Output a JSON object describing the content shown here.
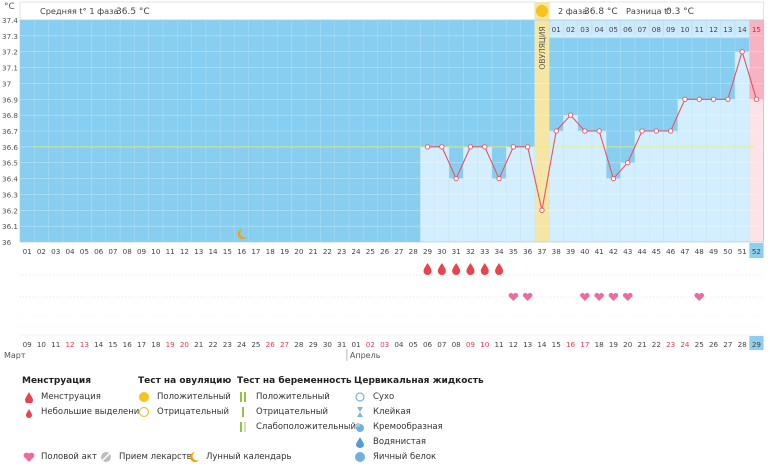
{
  "header": {
    "phase1_label": "Средняя t° 1 фаза",
    "phase1_value": "36.5 °C",
    "phase2_label": "2 фаза",
    "phase2_value": "36.8 °C",
    "diff_label": "Разница t°",
    "diff_value": "0.3 °C",
    "ovulation_label": "ОВУЛЯЦИЯ",
    "unit": "°C"
  },
  "chart_data": {
    "type": "line",
    "ylim": [
      36,
      37.4
    ],
    "y_ticks": [
      "37.4",
      "37.3",
      "37.2",
      "37.1",
      "37",
      "36.9",
      "36.8",
      "36.7",
      "36.6",
      "36.5",
      "36.4",
      "36.3",
      "36.2",
      "36.1",
      "36"
    ],
    "cycle_days": [
      "01",
      "02",
      "03",
      "04",
      "05",
      "06",
      "07",
      "08",
      "09",
      "10",
      "11",
      "12",
      "13",
      "14",
      "15",
      "16",
      "17",
      "18",
      "19",
      "20",
      "21",
      "22",
      "23",
      "24",
      "25",
      "26",
      "27",
      "28",
      "29",
      "30",
      "31",
      "32",
      "33",
      "34",
      "35",
      "36",
      "37",
      "38",
      "39",
      "40",
      "41",
      "42",
      "43",
      "44",
      "45",
      "46",
      "47",
      "48",
      "49",
      "50",
      "51",
      "52"
    ],
    "phase2_days": [
      "01",
      "02",
      "03",
      "04",
      "05",
      "06",
      "07",
      "08",
      "09",
      "10",
      "11",
      "12",
      "13",
      "14",
      "15"
    ],
    "dates": [
      "09",
      "10",
      "11",
      "12",
      "13",
      "14",
      "15",
      "16",
      "17",
      "18",
      "19",
      "20",
      "21",
      "22",
      "23",
      "24",
      "25",
      "26",
      "27",
      "28",
      "29",
      "30",
      "31",
      "01",
      "02",
      "03",
      "04",
      "05",
      "06",
      "07",
      "08",
      "09",
      "10",
      "11",
      "12",
      "13",
      "14",
      "15",
      "16",
      "17",
      "18",
      "19",
      "20",
      "21",
      "22",
      "23",
      "24",
      "25",
      "26",
      "27",
      "28",
      "29"
    ],
    "red_dates": [
      3,
      4,
      10,
      11,
      17,
      18,
      24,
      25,
      31,
      32,
      38,
      39,
      45,
      46
    ],
    "months": [
      "Март",
      "Апрель"
    ],
    "temperature_days": [
      29,
      30,
      31,
      32,
      33,
      34,
      35,
      36,
      37,
      38,
      39,
      40,
      41,
      42,
      43,
      44,
      45,
      46,
      47,
      48,
      49,
      50,
      51,
      52
    ],
    "temperatures": [
      36.6,
      36.6,
      36.4,
      36.6,
      36.6,
      36.4,
      36.6,
      36.6,
      36.2,
      36.7,
      36.8,
      36.7,
      36.7,
      36.4,
      36.5,
      36.7,
      36.7,
      36.7,
      36.9,
      36.9,
      36.9,
      36.9,
      37.2,
      36.9
    ],
    "ovulation_day": 37,
    "current_day": 52,
    "coverline": 36.6,
    "menstruation_days": [
      29,
      30,
      31,
      32,
      33,
      34
    ],
    "intercourse_days": [
      35,
      36,
      40,
      41,
      42,
      43,
      48
    ],
    "moon_day": 16
  },
  "legend": {
    "menstruation": {
      "title": "Менструация",
      "items": [
        "Менструация",
        "Небольшие выделения"
      ]
    },
    "ovulation_test": {
      "title": "Тест на овуляцию",
      "items": [
        "Положительный",
        "Отрицательный"
      ]
    },
    "pregnancy_test": {
      "title": "Тест на беременность",
      "items": [
        "Положительный",
        "Отрицательный",
        "Слабоположительный"
      ]
    },
    "cervical": {
      "title": "Цервикальная жидкость",
      "items": [
        "Сухо",
        "Клейкая",
        "Кремообразная",
        "Водянистая",
        "Яичный белок"
      ]
    },
    "bottom": [
      "Половой акт",
      "Прием лекарств",
      "Лунный календарь"
    ]
  },
  "colors": {
    "phase1_bg": "#87cef0",
    "phase2_bg": "#b9e4f8",
    "column": "#d3efff",
    "ovulation": "#f5e6a3",
    "line": "#e8535f",
    "heart": "#f06aa2",
    "drop": "#e8434f",
    "current": "#f7b3c1"
  }
}
